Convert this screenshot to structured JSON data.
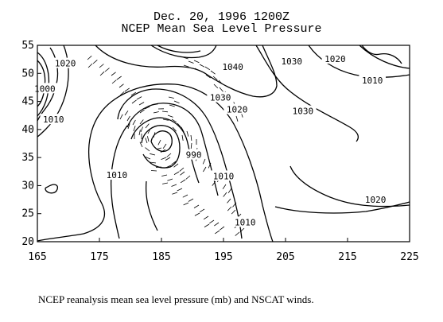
{
  "chart_data": {
    "type": "contour",
    "title": "Dec. 20, 1996  1200Z",
    "subtitle": "NCEP Mean Sea Level Pressure",
    "caption": "NCEP reanalysis mean sea level pressure (mb) and NSCAT winds.",
    "xlim": [
      165,
      225
    ],
    "ylim": [
      20,
      55
    ],
    "x_ticks": [
      165,
      175,
      185,
      195,
      205,
      215,
      225
    ],
    "y_ticks": [
      20,
      25,
      30,
      35,
      40,
      45,
      50,
      55
    ],
    "contour_labels": [
      {
        "text": "1020",
        "x": 169.5,
        "y": 51.8
      },
      {
        "text": "1000",
        "x": 166.2,
        "y": 47.3
      },
      {
        "text": "1010",
        "x": 167.6,
        "y": 41.8
      },
      {
        "text": "1040",
        "x": 196.5,
        "y": 51.2
      },
      {
        "text": "1030",
        "x": 206.0,
        "y": 52.2
      },
      {
        "text": "1020",
        "x": 213.0,
        "y": 52.6
      },
      {
        "text": "1010",
        "x": 219.0,
        "y": 48.8
      },
      {
        "text": "1030",
        "x": 194.5,
        "y": 45.7
      },
      {
        "text": "1030",
        "x": 207.8,
        "y": 43.3
      },
      {
        "text": "1020",
        "x": 197.2,
        "y": 43.6
      },
      {
        "text": "990",
        "x": 190.2,
        "y": 35.5
      },
      {
        "text": "1010",
        "x": 177.8,
        "y": 31.9
      },
      {
        "text": "1010",
        "x": 195.0,
        "y": 31.7
      },
      {
        "text": "1020",
        "x": 219.5,
        "y": 27.5
      },
      {
        "text": "1010",
        "x": 198.5,
        "y": 23.5
      }
    ]
  }
}
